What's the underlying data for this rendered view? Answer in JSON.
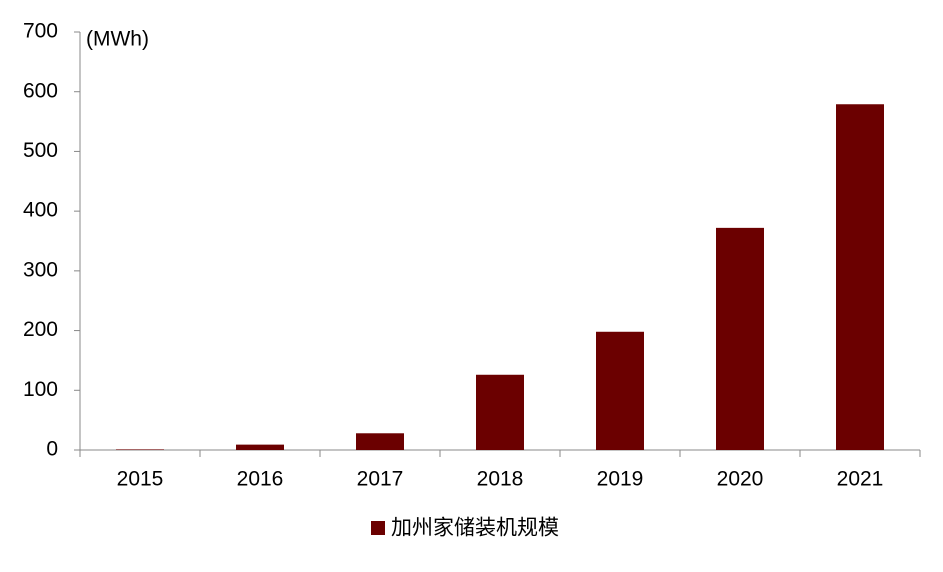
{
  "chart_data": {
    "type": "bar",
    "y_label": "(MWh)",
    "categories": [
      "2015",
      "2016",
      "2017",
      "2018",
      "2019",
      "2020",
      "2021"
    ],
    "series": [
      {
        "name": "加州家储装机规模",
        "color": "#6b0000",
        "values": [
          1,
          9,
          28,
          126,
          198,
          372,
          579
        ]
      }
    ],
    "ylim": [
      0,
      700
    ],
    "yticks": [
      0,
      100,
      200,
      300,
      400,
      500,
      600,
      700
    ],
    "grid": false,
    "legend": "bottom"
  }
}
